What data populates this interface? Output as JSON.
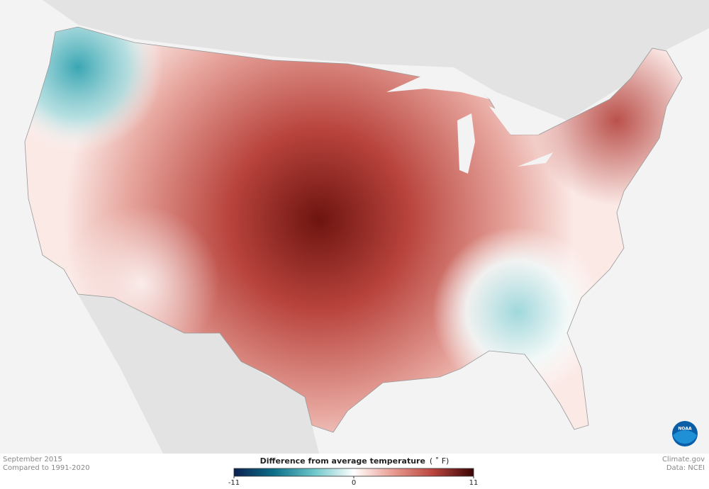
{
  "map": {
    "caption": {
      "line1": "September 2015",
      "line2": "Compared to 1991-2020"
    },
    "credit": {
      "site": "Climate.gov",
      "source": "Data: NCEI"
    },
    "logo": "NOAA",
    "legend": {
      "title": "Difference from average temperature",
      "unit": "( ˚ F)",
      "min": -11,
      "max": 11,
      "ticks": [
        -11,
        0,
        11
      ],
      "colors": [
        "#0b1f4f",
        "#0c6f8a",
        "#6cc6c9",
        "#ffffff",
        "#e89a90",
        "#b8433c",
        "#3a0505"
      ]
    }
  }
}
